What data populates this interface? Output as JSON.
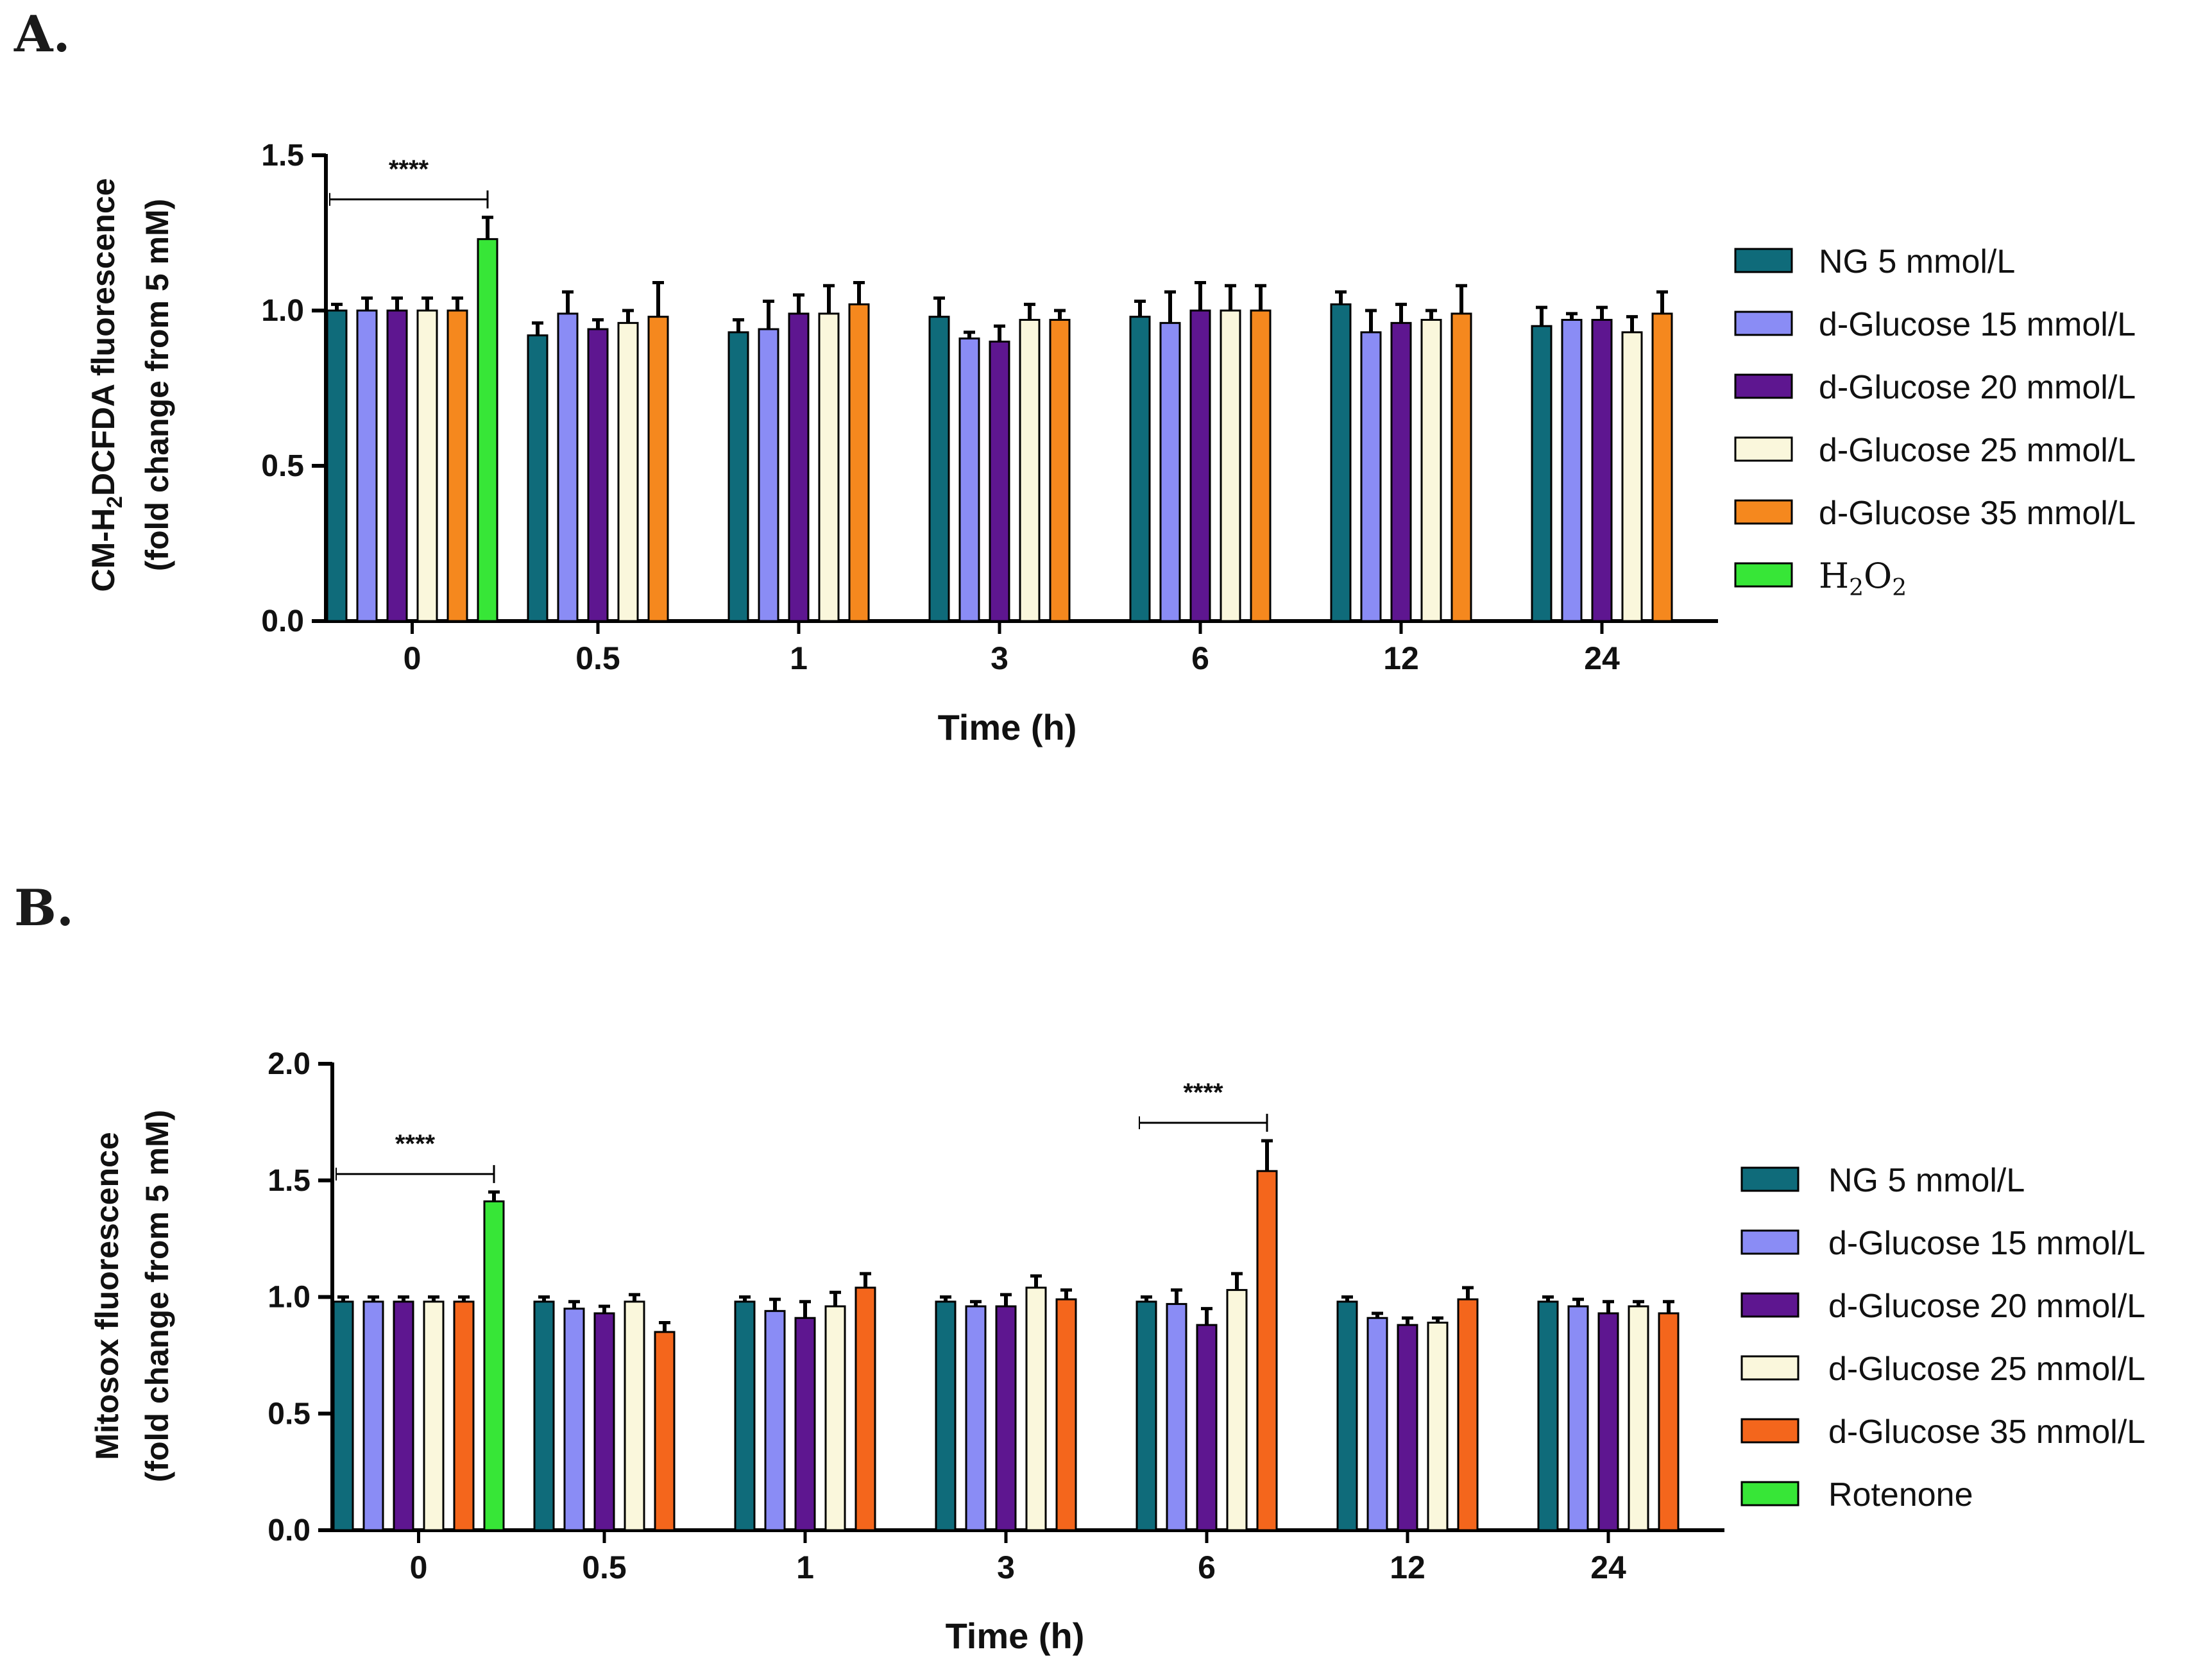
{
  "chart_data": [
    {
      "panel": "A.",
      "type": "bar",
      "xlabel": "Time (h)",
      "ylabel_line1_parts": [
        "CM-H",
        "2",
        "DCFDA fluorescence"
      ],
      "ylabel_line2": "(fold change from 5 mM)",
      "ylim": [
        0,
        1.5
      ],
      "yticks": [
        "0.0",
        "0.5",
        "1.0",
        "1.5"
      ],
      "categories": [
        "0",
        "0.5",
        "1",
        "3",
        "6",
        "12",
        "24"
      ],
      "series": [
        {
          "name": "NG 5 mmol/L",
          "color": "#0F6B7A",
          "values": [
            1.0,
            0.92,
            0.93,
            0.98,
            0.98,
            1.02,
            0.95
          ],
          "errors": [
            0.02,
            0.04,
            0.04,
            0.06,
            0.05,
            0.04,
            0.06
          ]
        },
        {
          "name": "d-Glucose 15 mmol/L",
          "color": "#8A8CF5",
          "values": [
            1.0,
            0.99,
            0.94,
            0.91,
            0.96,
            0.93,
            0.97
          ],
          "errors": [
            0.04,
            0.07,
            0.09,
            0.02,
            0.1,
            0.07,
            0.02
          ]
        },
        {
          "name": "d-Glucose 20 mmol/L",
          "color": "#5E1690",
          "values": [
            1.0,
            0.94,
            0.99,
            0.9,
            1.0,
            0.96,
            0.97
          ],
          "errors": [
            0.04,
            0.03,
            0.06,
            0.05,
            0.09,
            0.06,
            0.04
          ]
        },
        {
          "name": "d-Glucose 25 mmol/L",
          "color": "#FAF7DC",
          "values": [
            1.0,
            0.96,
            0.99,
            0.97,
            1.0,
            0.97,
            0.93
          ],
          "errors": [
            0.04,
            0.04,
            0.09,
            0.05,
            0.08,
            0.03,
            0.05
          ]
        },
        {
          "name": "d-Glucose 35 mmol/L",
          "color": "#F5881E",
          "values": [
            1.0,
            0.98,
            1.02,
            0.97,
            1.0,
            0.99,
            0.99
          ],
          "errors": [
            0.04,
            0.11,
            0.07,
            0.03,
            0.08,
            0.09,
            0.07
          ]
        },
        {
          "name": "H2O2",
          "name_parts": [
            "H",
            "2",
            "O",
            "2"
          ],
          "color": "#37E637",
          "values": [
            1.23,
            null,
            null,
            null,
            null,
            null,
            null
          ],
          "errors": [
            0.07,
            null,
            null,
            null,
            null,
            null,
            null
          ]
        }
      ],
      "significance": [
        {
          "label": "****",
          "category": "0",
          "from_series": 0,
          "to_series": 5
        }
      ]
    },
    {
      "panel": "B.",
      "type": "bar",
      "xlabel": "Time (h)",
      "ylabel_line1": "Mitosox fluorescence",
      "ylabel_line2": "(fold change from 5 mM)",
      "ylim": [
        0,
        2.0
      ],
      "yticks": [
        "0.0",
        "0.5",
        "1.0",
        "1.5",
        "2.0"
      ],
      "categories": [
        "0",
        "0.5",
        "1",
        "3",
        "6",
        "12",
        "24"
      ],
      "series": [
        {
          "name": "NG 5 mmol/L",
          "color": "#0F6B7A",
          "values": [
            0.98,
            0.98,
            0.98,
            0.98,
            0.98,
            0.98,
            0.98
          ],
          "errors": [
            0.02,
            0.02,
            0.02,
            0.02,
            0.02,
            0.02,
            0.02
          ]
        },
        {
          "name": "d-Glucose 15 mmol/L",
          "color": "#8A8CF5",
          "values": [
            0.98,
            0.95,
            0.94,
            0.96,
            0.97,
            0.91,
            0.96
          ],
          "errors": [
            0.02,
            0.03,
            0.05,
            0.02,
            0.06,
            0.02,
            0.03
          ]
        },
        {
          "name": "d-Glucose 20 mmol/L",
          "color": "#5E1690",
          "values": [
            0.98,
            0.93,
            0.91,
            0.96,
            0.88,
            0.88,
            0.93
          ],
          "errors": [
            0.02,
            0.03,
            0.07,
            0.05,
            0.07,
            0.03,
            0.05
          ]
        },
        {
          "name": "d-Glucose 25 mmol/L",
          "color": "#FAF7DC",
          "values": [
            0.98,
            0.98,
            0.96,
            1.04,
            1.03,
            0.89,
            0.96
          ],
          "errors": [
            0.02,
            0.03,
            0.06,
            0.05,
            0.07,
            0.02,
            0.02
          ]
        },
        {
          "name": "d-Glucose 35 mmol/L",
          "color": "#F4661C",
          "values": [
            0.98,
            0.85,
            1.04,
            0.99,
            1.54,
            0.99,
            0.93
          ],
          "errors": [
            0.02,
            0.04,
            0.06,
            0.04,
            0.13,
            0.05,
            0.05
          ]
        },
        {
          "name": "Rotenone",
          "color": "#37E637",
          "values": [
            1.41,
            null,
            null,
            null,
            null,
            null,
            null
          ],
          "errors": [
            0.04,
            null,
            null,
            null,
            null,
            null,
            null
          ]
        }
      ],
      "significance": [
        {
          "label": "****",
          "category": "0",
          "from_series": 0,
          "to_series": 5
        },
        {
          "label": "****",
          "category": "6",
          "from_series": 0,
          "to_series": 4
        }
      ]
    }
  ]
}
